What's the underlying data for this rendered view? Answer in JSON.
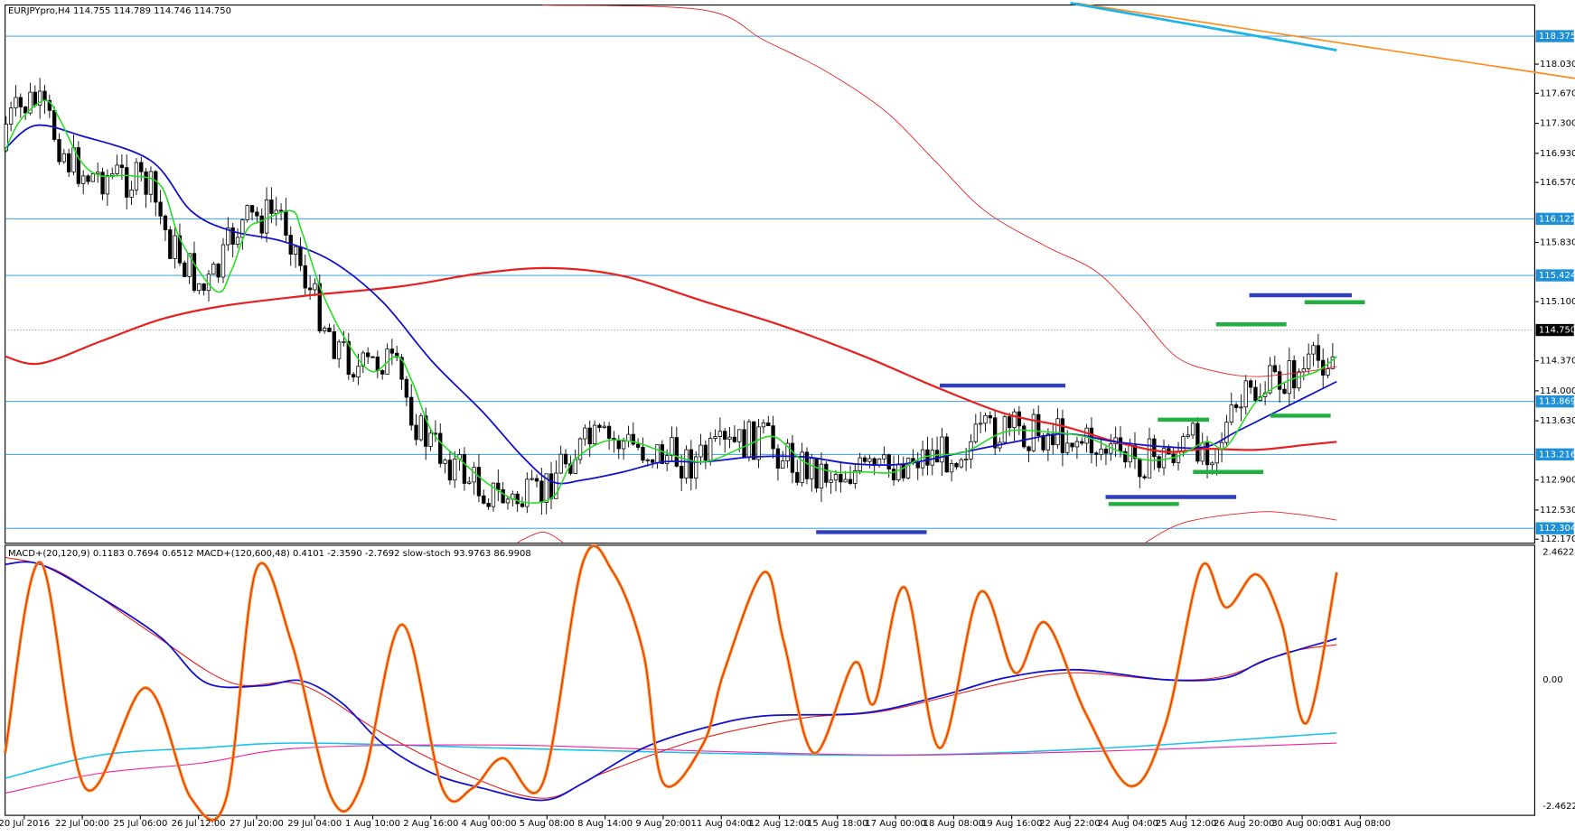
{
  "header": {
    "title": "EURJPYpro,H4 114.755 114.789 114.746 114.750"
  },
  "price_axis": {
    "grid_labels": [
      "118.030",
      "117.670",
      "117.300",
      "116.930",
      "116.570",
      "115.830",
      "115.100",
      "114.370",
      "114.000",
      "113.630",
      "112.900",
      "112.530",
      "112.170"
    ],
    "level_labels": [
      "118.375",
      "116.122",
      "115.424",
      "113.869",
      "113.216",
      "112.304"
    ],
    "current_price": "114.750"
  },
  "indicator": {
    "title": "MACD+(20,120,9) 0.1183 0.7694 0.6512  MACD+(120,600,48) 0.4101 -2.3590 -2.7692  slow-stoch 93.9763 86.9908",
    "axis_labels": [
      "2.4622",
      "0.00",
      "-2.4622"
    ]
  },
  "time_axis": {
    "labels": [
      "20 Jul 2016",
      "22 Jul 00:00",
      "25 Jul 06:00",
      "26 Jul 12:00",
      "27 Jul 20:00",
      "29 Jul 04:00",
      "1 Aug 10:00",
      "2 Aug 16:00",
      "4 Aug 00:00",
      "5 Aug 08:00",
      "8 Aug 14:00",
      "9 Aug 20:00",
      "11 Aug 04:00",
      "12 Aug 12:00",
      "15 Aug 18:00",
      "17 Aug 00:00",
      "18 Aug 08:00",
      "19 Aug 16:00",
      "22 Aug 22:00",
      "24 Aug 04:00",
      "25 Aug 12:00",
      "26 Aug 20:00",
      "30 Aug 00:00",
      "31 Aug 08:00"
    ]
  }
}
